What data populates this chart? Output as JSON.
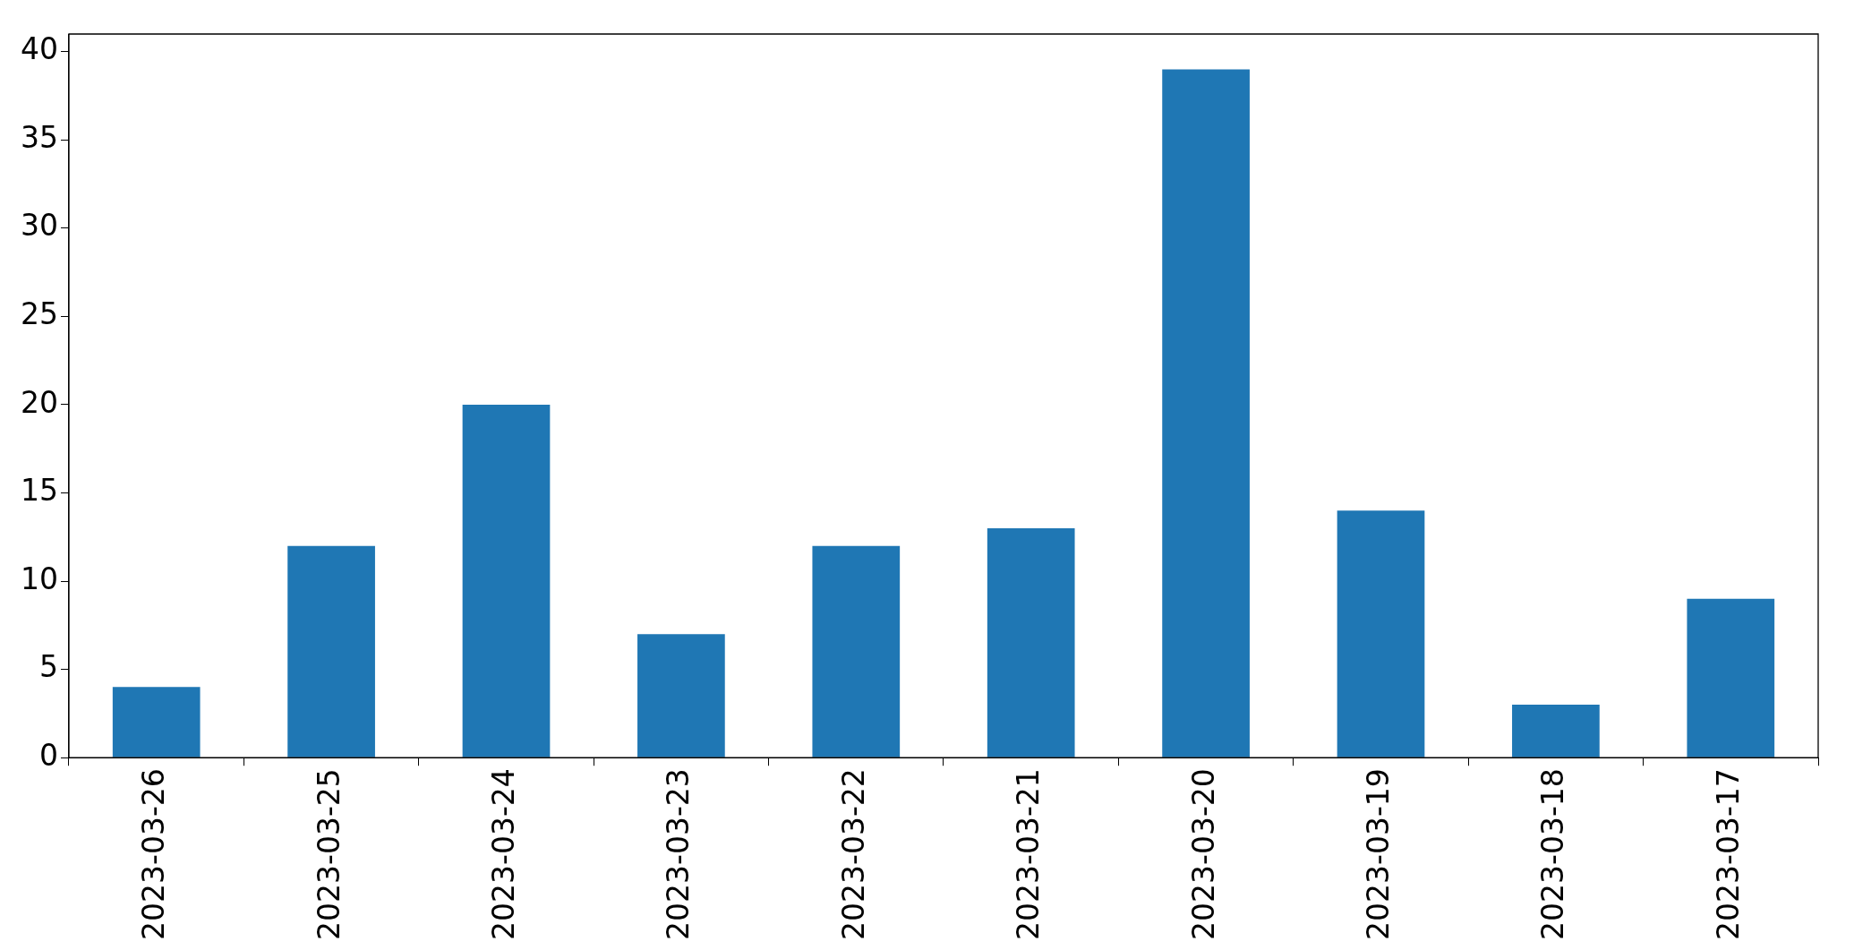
{
  "chart_data": {
    "type": "bar",
    "categories": [
      "2023-03-26",
      "2023-03-25",
      "2023-03-24",
      "2023-03-23",
      "2023-03-22",
      "2023-03-21",
      "2023-03-20",
      "2023-03-19",
      "2023-03-18",
      "2023-03-17"
    ],
    "values": [
      4,
      12,
      20,
      7,
      12,
      13,
      39,
      14,
      3,
      9
    ],
    "color": "#1f77b4",
    "ylim": [
      0,
      41
    ],
    "yticks": [
      0,
      5,
      10,
      15,
      20,
      25,
      30,
      35,
      40
    ],
    "grid": false,
    "legend": false
  }
}
